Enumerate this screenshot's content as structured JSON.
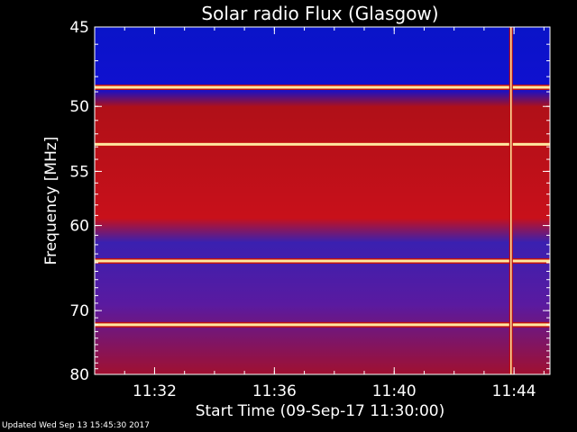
{
  "chart_data": {
    "type": "heatmap",
    "title": "Solar radio Flux (Glasgow)",
    "xlabel": "Start Time (09-Sep-17 11:30:00)",
    "ylabel": "Frequency [MHz]",
    "x_unit": "minutes after 11:30:00",
    "xlim": [
      0,
      15.2
    ],
    "ylim": [
      80,
      45
    ],
    "y_scale": "reciprocal",
    "x_ticks": [
      {
        "value": 2,
        "label": "11:32"
      },
      {
        "value": 6,
        "label": "11:36"
      },
      {
        "value": 10,
        "label": "11:40"
      },
      {
        "value": 14,
        "label": "11:44"
      }
    ],
    "y_ticks": [
      {
        "value": 45,
        "label": "45"
      },
      {
        "value": 50,
        "label": "50"
      },
      {
        "value": 55,
        "label": "55"
      },
      {
        "value": 60,
        "label": "60"
      },
      {
        "value": 70,
        "label": "70"
      },
      {
        "value": 80,
        "label": "80"
      }
    ],
    "rfi_bands_mhz": [
      48.7,
      52.8,
      63.8,
      72.0
    ],
    "burst_time_min": 13.9,
    "colors": {
      "background": "#000000",
      "low": "#1a10b0",
      "mid": "#c01010",
      "high": "#ffe8a0"
    }
  },
  "footer": "Updated Wed Sep 13 15:45:30 2017"
}
